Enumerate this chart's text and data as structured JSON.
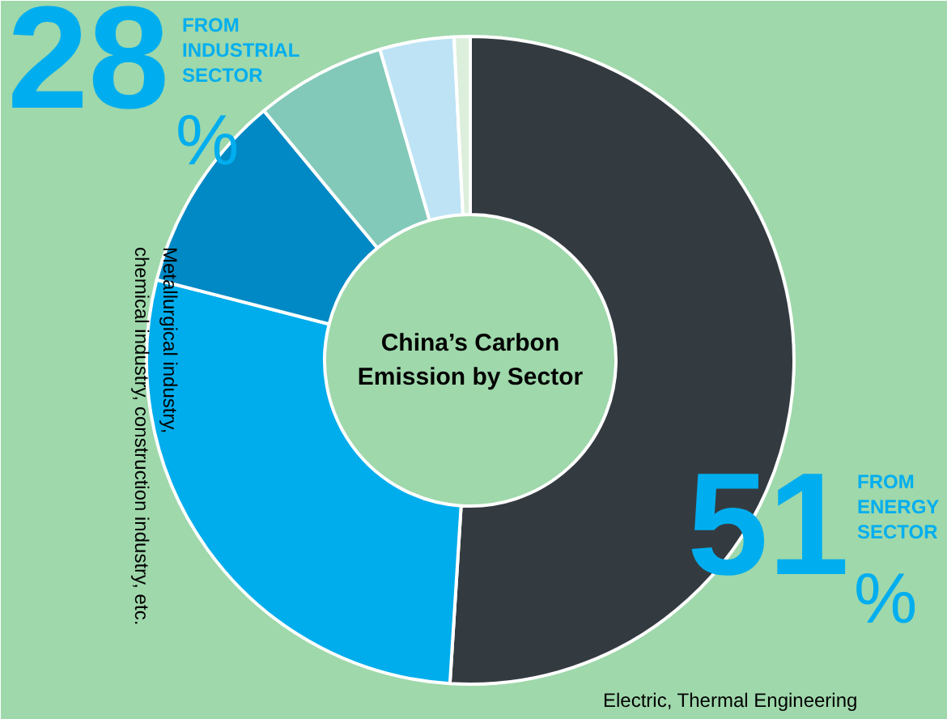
{
  "chart_data": {
    "type": "donut",
    "title": "China’s Carbon\nEmission by Sector",
    "categories": [
      "Electric, Thermal Engineering",
      "Metallurgical industry,\nchemical industry, construction industry, etc.",
      null,
      null,
      null,
      null
    ],
    "values": [
      51,
      28,
      10,
      6.5,
      3.7,
      0.8
    ],
    "colors": [
      "#343b40",
      "#00adec",
      "#0089c4",
      "#82c9b9",
      "#bde3f5",
      "#dcefdc"
    ],
    "value_labels": [
      "51%",
      "28%",
      null,
      null,
      null,
      null
    ],
    "annotations": [
      "FROM\nENERGY\nSECTOR",
      "FROM\nINDUSTRIAL\nSECTOR"
    ]
  }
}
